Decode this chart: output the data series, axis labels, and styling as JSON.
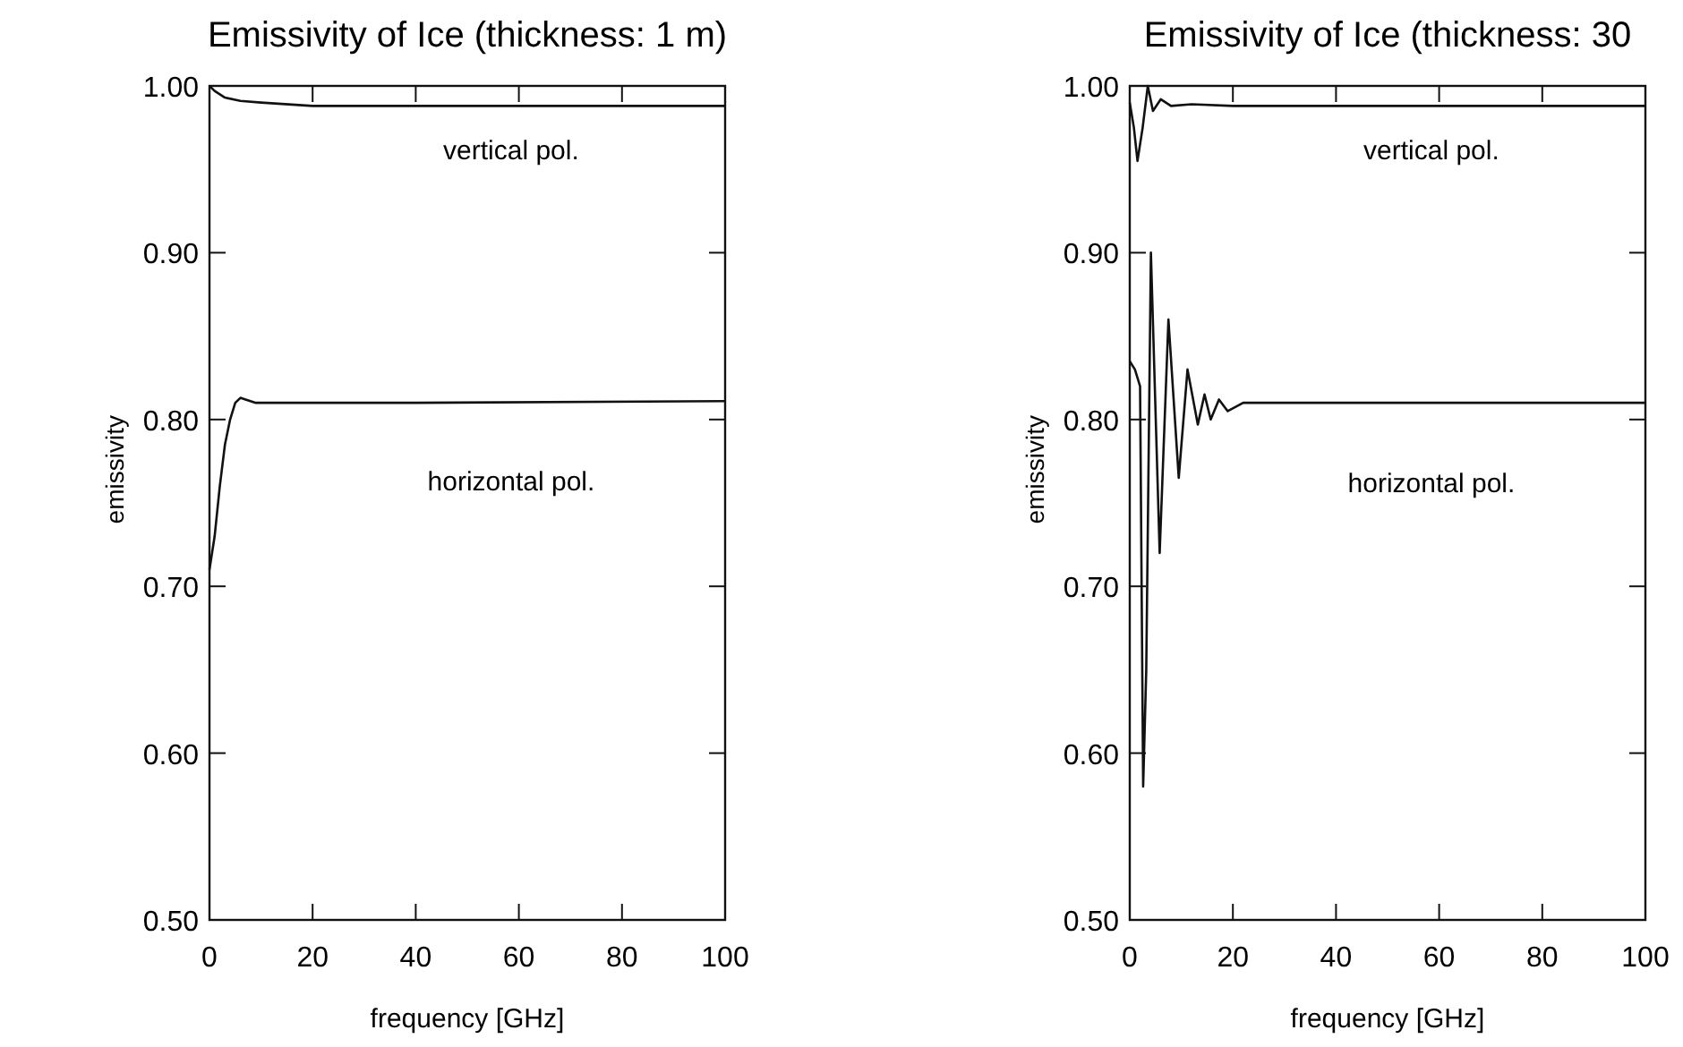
{
  "chart_data": [
    {
      "type": "line",
      "title": "Emissivity of Ice (thickness: 1 m)",
      "xlabel": "frequency [GHz]",
      "ylabel": "emissivity",
      "xlim": [
        0,
        100
      ],
      "ylim": [
        0.5,
        1.0
      ],
      "xticks": [
        0,
        20,
        40,
        60,
        80,
        100
      ],
      "yticks": [
        {
          "value": 0.5,
          "label": "0.50"
        },
        {
          "value": 0.6,
          "label": "0.60"
        },
        {
          "value": 0.7,
          "label": "0.70"
        },
        {
          "value": 0.8,
          "label": "0.80"
        },
        {
          "value": 0.9,
          "label": "0.90"
        },
        {
          "value": 1.0,
          "label": "1.00"
        }
      ],
      "series": [
        {
          "name": "vertical pol.",
          "color": "#111111",
          "x": [
            0,
            1,
            3,
            6,
            10,
            20,
            40,
            100
          ],
          "values": [
            1.0,
            0.997,
            0.993,
            0.991,
            0.99,
            0.988,
            0.988,
            0.988
          ]
        },
        {
          "name": "horizontal pol.",
          "color": "#111111",
          "x": [
            0,
            1,
            2,
            3,
            4,
            5,
            6,
            7,
            9,
            12,
            20,
            40,
            100
          ],
          "values": [
            0.71,
            0.73,
            0.76,
            0.785,
            0.8,
            0.81,
            0.813,
            0.812,
            0.81,
            0.81,
            0.81,
            0.81,
            0.811
          ]
        }
      ]
    },
    {
      "type": "line",
      "title": "Emissivity of Ice (thickness: 30",
      "xlabel": "frequency [GHz]",
      "ylabel": "emissivity",
      "xlim": [
        0,
        100
      ],
      "ylim": [
        0.5,
        1.0
      ],
      "xticks": [
        0,
        20,
        40,
        60,
        80,
        100
      ],
      "yticks": [
        {
          "value": 0.5,
          "label": "0.50"
        },
        {
          "value": 0.6,
          "label": "0.60"
        },
        {
          "value": 0.7,
          "label": "0.70"
        },
        {
          "value": 0.8,
          "label": "0.80"
        },
        {
          "value": 0.9,
          "label": "0.90"
        },
        {
          "value": 1.0,
          "label": "1.00"
        }
      ],
      "series": [
        {
          "name": "vertical pol.",
          "color": "#111111",
          "x": [
            0,
            0.8,
            1.5,
            2.5,
            3.5,
            4.5,
            6,
            8,
            12,
            20,
            100
          ],
          "values": [
            0.99,
            0.975,
            0.955,
            0.975,
            1.0,
            0.985,
            0.992,
            0.988,
            0.989,
            0.988,
            0.988
          ]
        },
        {
          "name": "horizontal pol.",
          "color": "#111111",
          "x": [
            0,
            1,
            2,
            2.6,
            3.2,
            4.1,
            5.8,
            7.5,
            9.5,
            11.2,
            13.2,
            14.5,
            15.7,
            17.3,
            19,
            22,
            100
          ],
          "values": [
            0.835,
            0.83,
            0.82,
            0.58,
            0.65,
            0.9,
            0.72,
            0.86,
            0.765,
            0.83,
            0.797,
            0.815,
            0.8,
            0.812,
            0.805,
            0.81,
            0.81
          ]
        }
      ]
    }
  ]
}
